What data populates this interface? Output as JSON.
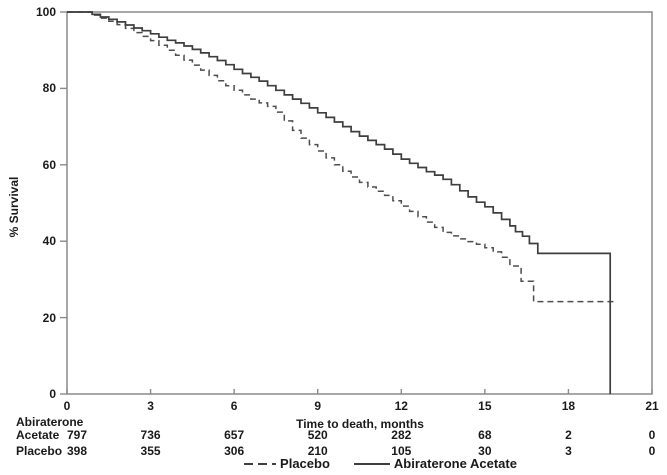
{
  "figure": {
    "background": "#ffffff",
    "frame_color": "#8a8a8a",
    "text_color": "#1a1a1a",
    "solid_curve_color": "#3e3e3e",
    "dashed_curve_color": "#4d4d4d"
  },
  "axes": {
    "y_label": "% Survival",
    "x_label": "Time to death, months",
    "y_ticks": [
      0,
      20,
      40,
      60,
      80,
      100
    ],
    "x_ticks": [
      0,
      3,
      6,
      9,
      12,
      15,
      18,
      21
    ]
  },
  "risk_table": {
    "group1_line1": "Abiraterone",
    "group1_line2": "Acetate",
    "group2_label": "Placebo",
    "abiraterone_counts": [
      "797",
      "736",
      "657",
      "520",
      "282",
      "68",
      "2",
      "0"
    ],
    "placebo_counts": [
      "398",
      "355",
      "306",
      "210",
      "105",
      "30",
      "3",
      "0"
    ]
  },
  "legend": {
    "placebo_label": "Placebo",
    "abiraterone_label": "Abiraterone Acetate"
  },
  "chart_data": {
    "type": "line",
    "subtype": "kaplan-meier-step",
    "title": "",
    "xlabel": "Time to death, months",
    "ylabel": "% Survival",
    "xlim": [
      0,
      21
    ],
    "ylim": [
      0,
      100
    ],
    "grid": false,
    "legend_position": "bottom-center",
    "series": [
      {
        "name": "Placebo",
        "style": "dashed",
        "points": [
          [
            0,
            100
          ],
          [
            0.7,
            100
          ],
          [
            0.9,
            99.2
          ],
          [
            1.2,
            98.4
          ],
          [
            1.5,
            97.6
          ],
          [
            1.8,
            96.7
          ],
          [
            2.1,
            95.7
          ],
          [
            2.4,
            94.6
          ],
          [
            2.7,
            93.6
          ],
          [
            3,
            92.5
          ],
          [
            3.3,
            91.3
          ],
          [
            3.6,
            90
          ],
          [
            3.9,
            88.7
          ],
          [
            4.2,
            87.4
          ],
          [
            4.5,
            86.1
          ],
          [
            4.8,
            84.8
          ],
          [
            5.1,
            83.4
          ],
          [
            5.4,
            82
          ],
          [
            5.7,
            80.7
          ],
          [
            6,
            79.5
          ],
          [
            6.3,
            78.3
          ],
          [
            6.6,
            77.2
          ],
          [
            6.9,
            76.2
          ],
          [
            7.2,
            75.3
          ],
          [
            7.5,
            73.8
          ],
          [
            7.8,
            71.5
          ],
          [
            8.1,
            69
          ],
          [
            8.4,
            67
          ],
          [
            8.7,
            65.3
          ],
          [
            9,
            63.6
          ],
          [
            9.3,
            61.8
          ],
          [
            9.6,
            60
          ],
          [
            9.9,
            58.3
          ],
          [
            10.2,
            56.8
          ],
          [
            10.5,
            55.4
          ],
          [
            10.8,
            54.2
          ],
          [
            11.1,
            53.1
          ],
          [
            11.4,
            52
          ],
          [
            11.7,
            50.6
          ],
          [
            12,
            49.2
          ],
          [
            12.3,
            47.8
          ],
          [
            12.6,
            46.4
          ],
          [
            12.9,
            45
          ],
          [
            13.2,
            43.6
          ],
          [
            13.5,
            42.3
          ],
          [
            13.8,
            41.4
          ],
          [
            14.1,
            40.6
          ],
          [
            14.4,
            39.9
          ],
          [
            14.7,
            39.2
          ],
          [
            15,
            38.3
          ],
          [
            15.3,
            37.2
          ],
          [
            15.6,
            35.8
          ],
          [
            15.9,
            33.5
          ],
          [
            16.3,
            29.5
          ],
          [
            16.75,
            24.2
          ],
          [
            19.7,
            24.2
          ]
        ]
      },
      {
        "name": "Abiraterone Acetate",
        "style": "solid",
        "points": [
          [
            0,
            100
          ],
          [
            0.7,
            100
          ],
          [
            0.9,
            99.4
          ],
          [
            1.2,
            98.7
          ],
          [
            1.5,
            98.1
          ],
          [
            1.8,
            97.4
          ],
          [
            2.1,
            96.6
          ],
          [
            2.4,
            95.8
          ],
          [
            2.7,
            95.1
          ],
          [
            3,
            94.3
          ],
          [
            3.3,
            93.4
          ],
          [
            3.6,
            92.6
          ],
          [
            3.9,
            91.9
          ],
          [
            4.2,
            91.1
          ],
          [
            4.5,
            90.2
          ],
          [
            4.8,
            89.3
          ],
          [
            5.1,
            88.3
          ],
          [
            5.4,
            87.3
          ],
          [
            5.7,
            86.2
          ],
          [
            6,
            85
          ],
          [
            6.3,
            83.9
          ],
          [
            6.6,
            82.9
          ],
          [
            6.9,
            81.9
          ],
          [
            7.2,
            80.7
          ],
          [
            7.5,
            79.5
          ],
          [
            7.8,
            78.3
          ],
          [
            8.1,
            77.2
          ],
          [
            8.4,
            76.1
          ],
          [
            8.7,
            74.9
          ],
          [
            9,
            73.6
          ],
          [
            9.3,
            72.4
          ],
          [
            9.6,
            71.2
          ],
          [
            9.9,
            70
          ],
          [
            10.2,
            68.7
          ],
          [
            10.5,
            67.5
          ],
          [
            10.8,
            66.4
          ],
          [
            11.1,
            65.3
          ],
          [
            11.4,
            64.1
          ],
          [
            11.7,
            62.8
          ],
          [
            12,
            61.5
          ],
          [
            12.3,
            60.4
          ],
          [
            12.6,
            59.3
          ],
          [
            12.9,
            58.2
          ],
          [
            13.2,
            57.3
          ],
          [
            13.5,
            56.2
          ],
          [
            13.8,
            54.8
          ],
          [
            14.1,
            53.2
          ],
          [
            14.4,
            51.6
          ],
          [
            14.7,
            50.2
          ],
          [
            15,
            49
          ],
          [
            15.3,
            47.4
          ],
          [
            15.6,
            45.7
          ],
          [
            15.9,
            44
          ],
          [
            16.1,
            42.5
          ],
          [
            16.35,
            41.3
          ],
          [
            16.6,
            39.4
          ],
          [
            16.9,
            36.8
          ],
          [
            19.5,
            36.8
          ],
          [
            19.5,
            0
          ]
        ]
      }
    ],
    "numbers_at_risk": {
      "times": [
        0,
        3,
        6,
        9,
        12,
        15,
        18,
        21
      ],
      "abiraterone_acetate": [
        797,
        736,
        657,
        520,
        282,
        68,
        2,
        0
      ],
      "placebo": [
        398,
        355,
        306,
        210,
        105,
        30,
        3,
        0
      ]
    }
  }
}
